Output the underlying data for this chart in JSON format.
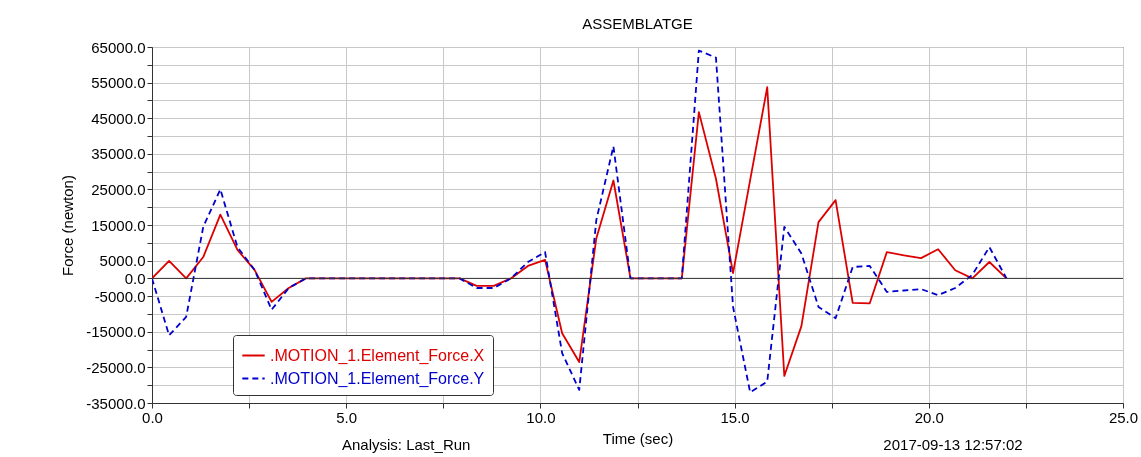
{
  "chart_data": {
    "type": "line",
    "title": "ASSEMBLATGE",
    "xlabel": "Time (sec)",
    "ylabel": "Force (newton)",
    "annotations": [
      "Analysis:  Last_Run",
      "2017-09-13 12:57:02"
    ],
    "x": [
      0,
      0.44,
      0.88,
      1.32,
      1.76,
      2.2,
      2.64,
      3.08,
      3.52,
      3.96,
      4.4,
      4.84,
      5.28,
      5.72,
      6.16,
      6.6,
      7.04,
      7.48,
      7.92,
      8.36,
      8.8,
      9.24,
      9.68,
      10.12,
      10.56,
      11.0,
      11.44,
      11.88,
      12.32,
      12.76,
      13.2,
      13.64,
      14.08,
      14.52,
      14.96,
      15.4,
      15.84,
      16.28,
      16.72,
      17.16,
      17.6,
      18.04,
      18.48,
      18.92,
      19.36,
      19.8,
      20.24,
      20.68,
      21.12,
      21.56,
      22.0
    ],
    "series": [
      {
        "name": ".MOTION_1.Element_Force.X",
        "color": "#dd0000",
        "line_style": "solid",
        "values": [
          0,
          4900,
          0,
          6000,
          17900,
          8000,
          2400,
          -6600,
          -2700,
          0,
          0,
          0,
          0,
          0,
          0,
          0,
          0,
          0,
          0,
          -2100,
          -2100,
          0,
          3500,
          5200,
          -15400,
          -23500,
          11300,
          27500,
          0,
          0,
          0,
          0,
          46700,
          28000,
          1500,
          27600,
          53700,
          -27400,
          -13400,
          15800,
          22000,
          -6900,
          -7000,
          7400,
          6500,
          5700,
          8200,
          2300,
          0,
          4600,
          0
        ]
      },
      {
        "name": ".MOTION_1.Element_Force.Y",
        "color": "#0000cc",
        "line_style": "dashed",
        "values": [
          0,
          -16000,
          -10800,
          14500,
          25000,
          8800,
          2400,
          -8800,
          -2700,
          0,
          0,
          0,
          0,
          0,
          0,
          0,
          0,
          0,
          0,
          -2700,
          -2700,
          0,
          4600,
          7400,
          -21000,
          -31300,
          16400,
          37100,
          0,
          0,
          0,
          0,
          64000,
          62000,
          -8000,
          -32000,
          -29000,
          14500,
          7000,
          -8000,
          -11200,
          3200,
          3500,
          -3800,
          -3400,
          -3000,
          -4700,
          -2700,
          1000,
          8800,
          0
        ]
      }
    ],
    "xlim": [
      0,
      25
    ],
    "xticks": [
      {
        "value": 0,
        "label": "0.0"
      },
      {
        "value": 2.5,
        "label": null
      },
      {
        "value": 5,
        "label": "5.0"
      },
      {
        "value": 7.5,
        "label": null
      },
      {
        "value": 10,
        "label": "10.0"
      },
      {
        "value": 12.5,
        "label": null
      },
      {
        "value": 15,
        "label": "15.0"
      },
      {
        "value": 17.5,
        "label": null
      },
      {
        "value": 20,
        "label": "20.0"
      },
      {
        "value": 22.5,
        "label": null
      },
      {
        "value": 25,
        "label": "25.0"
      }
    ],
    "ylim": [
      -35000,
      65000
    ],
    "yticks": [
      {
        "value": 65000,
        "label": "65000.0"
      },
      {
        "value": 60000,
        "label": null
      },
      {
        "value": 55000,
        "label": "55000.0"
      },
      {
        "value": 50000,
        "label": null
      },
      {
        "value": 45000,
        "label": "45000.0"
      },
      {
        "value": 40000,
        "label": null
      },
      {
        "value": 35000,
        "label": "35000.0"
      },
      {
        "value": 30000,
        "label": null
      },
      {
        "value": 25000,
        "label": "25000.0"
      },
      {
        "value": 20000,
        "label": null
      },
      {
        "value": 15000,
        "label": "15000.0"
      },
      {
        "value": 10000,
        "label": null
      },
      {
        "value": 5000,
        "label": "5000.0"
      },
      {
        "value": 0,
        "label": "0.0"
      },
      {
        "value": -5000,
        "label": "-5000.0"
      },
      {
        "value": -10000,
        "label": null
      },
      {
        "value": -15000,
        "label": "-15000.0"
      },
      {
        "value": -20000,
        "label": null
      },
      {
        "value": -25000,
        "label": "-25000.0"
      },
      {
        "value": -30000,
        "label": null
      },
      {
        "value": -35000,
        "label": "-35000.0"
      }
    ],
    "ref_lines": [
      {
        "axis": "y",
        "value": 0,
        "color": "#333333"
      }
    ],
    "grid": true,
    "legend": "bottom left"
  }
}
